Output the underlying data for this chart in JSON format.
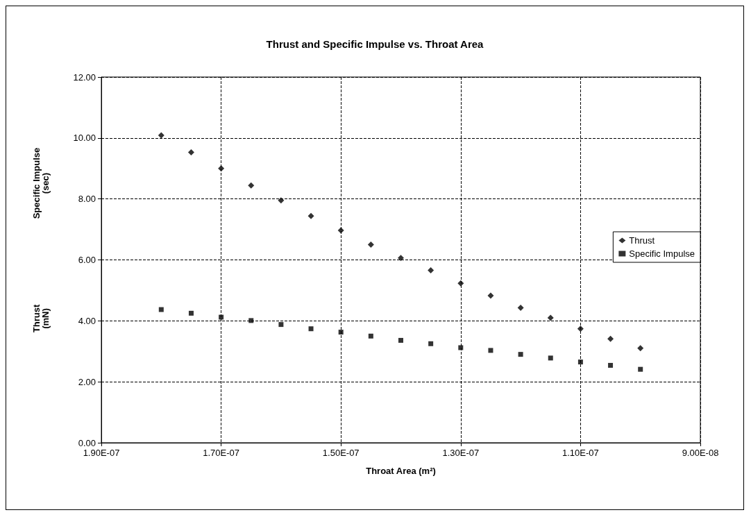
{
  "chart_data": {
    "type": "scatter",
    "title": "Thrust and Specific Impulse vs. Throat Area",
    "xlabel": "Throat Area (m²)",
    "ylabel": "Specific Impulse (sec)",
    "annotations": [
      "Thrust (mN)"
    ],
    "x": [
      1.8e-07,
      1.75e-07,
      1.7e-07,
      1.65e-07,
      1.6e-07,
      1.55e-07,
      1.5e-07,
      1.45e-07,
      1.4e-07,
      1.35e-07,
      1.3e-07,
      1.25e-07,
      1.2e-07,
      1.15e-07,
      1.1e-07,
      1.05e-07,
      1e-07
    ],
    "series": [
      {
        "name": "Thrust",
        "color": "#000000",
        "marker": "diamond",
        "values": [
          10.09,
          9.53,
          9.0,
          8.44,
          7.95,
          7.44,
          6.97,
          6.5,
          6.06,
          5.66,
          5.23,
          4.83,
          4.43,
          4.1,
          3.74,
          3.41,
          3.1
        ]
      },
      {
        "name": "Specific Impulse",
        "color": "#000000",
        "marker": "square",
        "values": [
          4.37,
          4.25,
          4.12,
          4.01,
          3.88,
          3.74,
          3.63,
          3.5,
          3.36,
          3.25,
          3.12,
          3.03,
          2.9,
          2.78,
          2.65,
          2.54,
          2.41
        ]
      }
    ],
    "xlim": [
      1.9e-07,
      9e-08
    ],
    "xticks": [
      {
        "value": 1.9e-07,
        "label": "1.90E-07"
      },
      {
        "value": 1.7e-07,
        "label": "1.70E-07"
      },
      {
        "value": 1.5e-07,
        "label": "1.50E-07"
      },
      {
        "value": 1.3e-07,
        "label": "1.30E-07"
      },
      {
        "value": 1.1e-07,
        "label": "1.10E-07"
      },
      {
        "value": 9e-08,
        "label": "9.00E-08"
      }
    ],
    "ylim": [
      0,
      12
    ],
    "yticks": [
      {
        "value": 0,
        "label": "0.00"
      },
      {
        "value": 2,
        "label": "2.00"
      },
      {
        "value": 4,
        "label": "4.00"
      },
      {
        "value": 6,
        "label": "6.00"
      },
      {
        "value": 8,
        "label": "8.00"
      },
      {
        "value": 10,
        "label": "10.00"
      },
      {
        "value": 12,
        "label": "12.00"
      }
    ],
    "grid": true,
    "legend": "right",
    "line_style": "dashed"
  }
}
